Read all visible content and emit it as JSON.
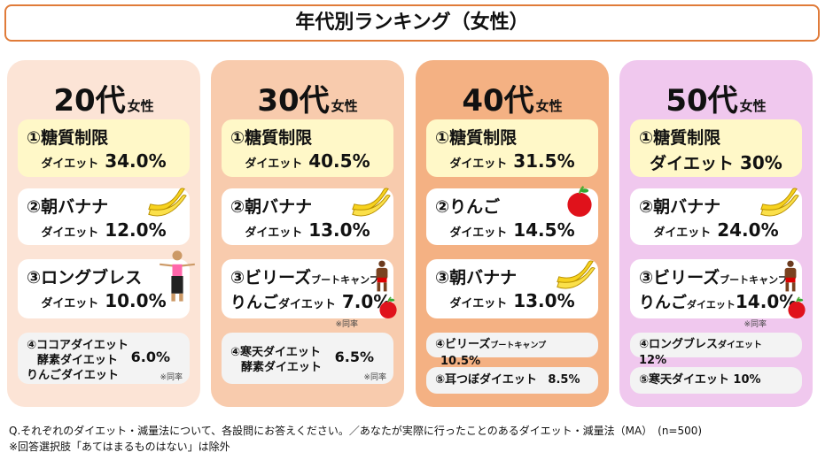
{
  "title": "年代別ランキング（女性）",
  "columns": [
    {
      "age": "20代",
      "gender": "女性",
      "items": [
        {
          "name": "①糖質制限",
          "suffix": "ダイエット",
          "value": "34.0%"
        },
        {
          "name": "②朝バナナ",
          "suffix": "ダイエット",
          "value": "12.0%"
        },
        {
          "name": "③ロングブレス",
          "suffix": "ダイエット",
          "value": "10.0%"
        },
        {
          "names": [
            "④ココアダイエット",
            "酵素ダイエット",
            "りんごダイエット"
          ],
          "value": "6.0%",
          "note": "※同率"
        }
      ]
    },
    {
      "age": "30代",
      "gender": "女性",
      "items": [
        {
          "name": "①糖質制限",
          "suffix": "ダイエット",
          "value": "40.5%"
        },
        {
          "name": "②朝バナナ",
          "suffix": "ダイエット",
          "value": "13.0%"
        },
        {
          "name": "③ビリーズ",
          "name_small": "ブートキャンプ",
          "name2": "りんご",
          "suffix": "ダイエット",
          "value": "7.0%",
          "note": "※同率"
        },
        {
          "names": [
            "④寒天ダイエット",
            "酵素ダイエット"
          ],
          "value": "6.5%",
          "note": "※同率"
        }
      ]
    },
    {
      "age": "40代",
      "gender": "女性",
      "items": [
        {
          "name": "①糖質制限",
          "suffix": "ダイエット",
          "value": "31.5%"
        },
        {
          "name": "②りんご",
          "suffix": "ダイエット",
          "value": "14.5%"
        },
        {
          "name": "③朝バナナ",
          "suffix": "ダイエット",
          "value": "13.0%"
        },
        {
          "name": "④ビリーズ",
          "name_small": "ブートキャンプ",
          "value": "10.5%"
        },
        {
          "name": "⑤耳つぼダイエット",
          "value": "8.5%"
        }
      ]
    },
    {
      "age": "50代",
      "gender": "女性",
      "items": [
        {
          "name": "①糖質制限",
          "suffix": "ダイエット",
          "value": "30%"
        },
        {
          "name": "②朝バナナ",
          "suffix": "ダイエット",
          "value": "24.0%"
        },
        {
          "name": "③ビリーズ",
          "name_small": "ブートキャンプ",
          "name2": "りんご",
          "suffix": "ダイエット",
          "value": "14.0%",
          "note": "※同率"
        },
        {
          "name": "④ロングブレス",
          "suffix": "ダイエット",
          "value": "12%"
        },
        {
          "name": "⑤寒天ダイエット",
          "value": "10%"
        }
      ]
    }
  ],
  "footnotes": [
    "Q.それぞれのダイエット・減量法について、各設問にお答えください。／あなたが実際に行ったことのあるダイエット・減量法（MA）　(n=500)",
    "※回答選択肢「あてはまるものはない」は除外"
  ]
}
